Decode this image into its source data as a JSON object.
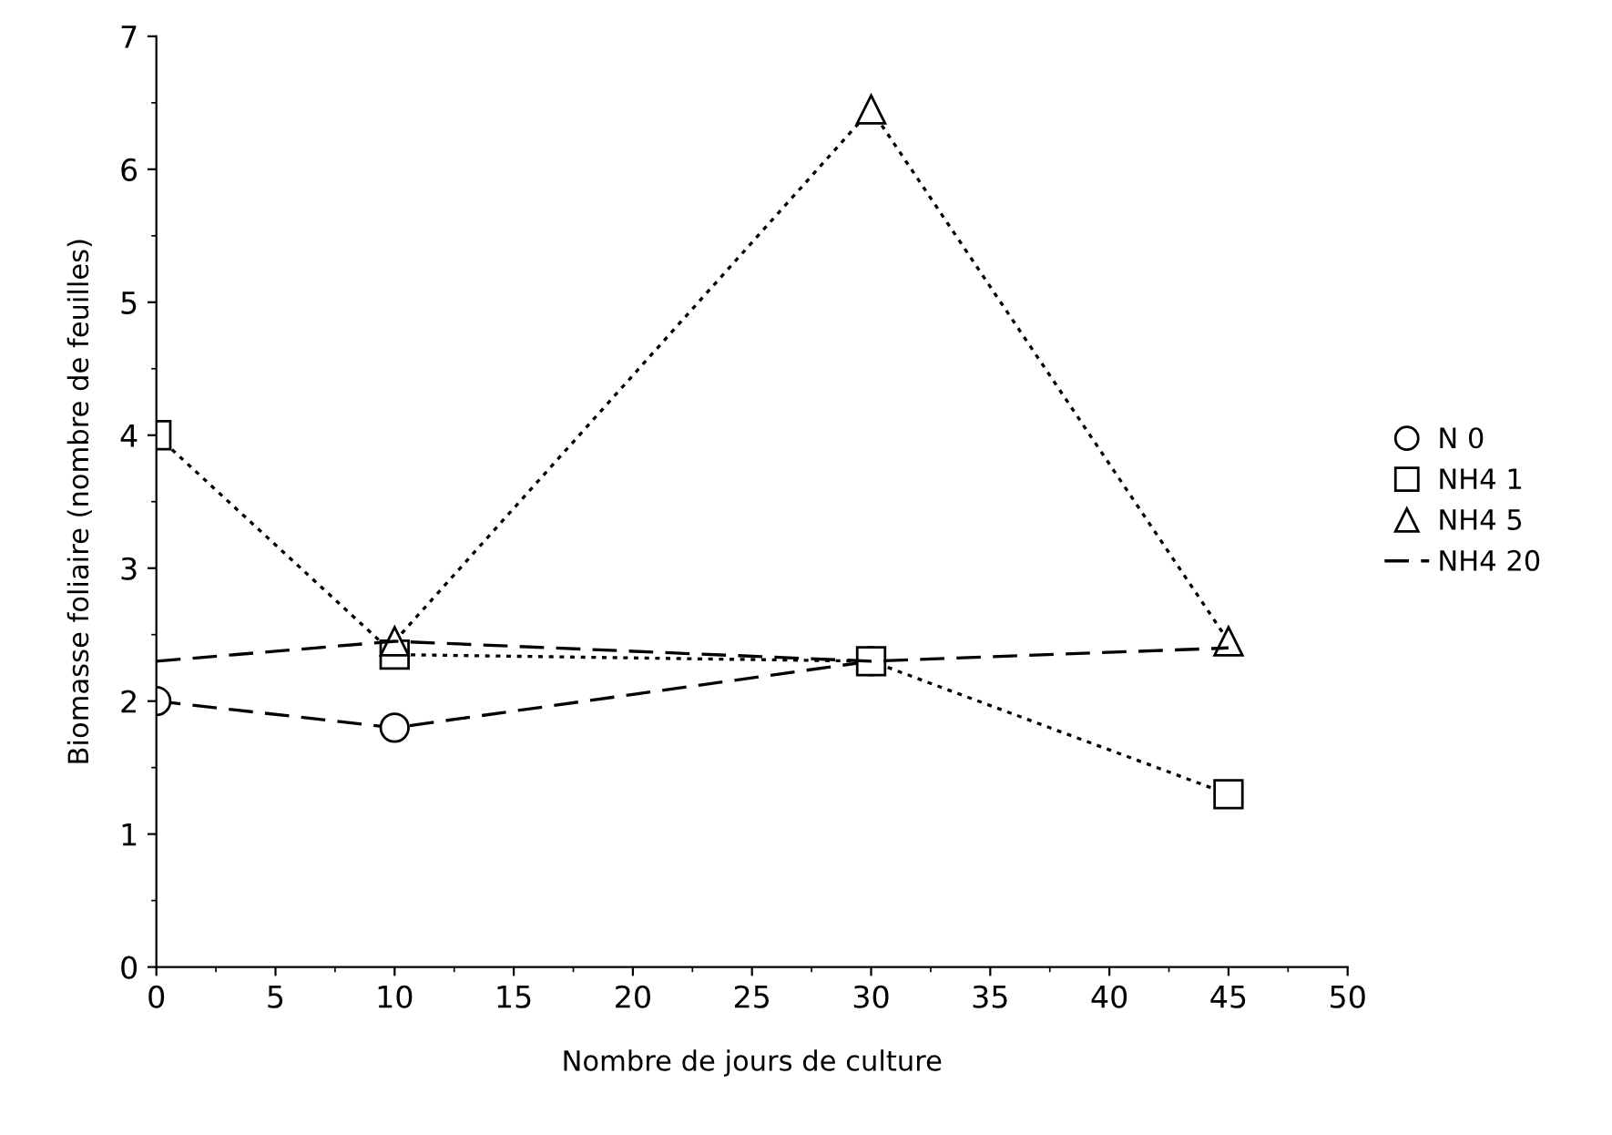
{
  "chart_data": {
    "type": "line",
    "xlabel": "Nombre de jours de culture",
    "ylabel": "Biomasse foliaire (nombre de feuilles)",
    "x": [
      0,
      10,
      30,
      45
    ],
    "series": [
      {
        "name": "N 0",
        "color": "#000000",
        "marker": "circle",
        "line_style": "dashed",
        "values": [
          2.0,
          1.8,
          2.3,
          null
        ]
      },
      {
        "name": "NH4 1",
        "color": "#000000",
        "marker": "square",
        "line_style": "dotted",
        "values": [
          4.0,
          2.35,
          2.3,
          1.3
        ]
      },
      {
        "name": "NH4 5",
        "color": "#000000",
        "marker": "triangle",
        "line_style": "dotted",
        "values": [
          null,
          2.45,
          6.45,
          2.45
        ]
      },
      {
        "name": "NH4 20",
        "color": "#000000",
        "marker": "none",
        "line_style": "dashed",
        "values": [
          2.3,
          2.45,
          2.3,
          2.4
        ]
      }
    ],
    "xlim": [
      0,
      50
    ],
    "xticks": [
      0,
      5,
      10,
      15,
      20,
      25,
      30,
      35,
      40,
      45,
      50
    ],
    "ylim": [
      0,
      7
    ],
    "yticks": [
      0,
      1,
      2,
      3,
      4,
      5,
      6,
      7
    ],
    "grid": false,
    "legend": "right"
  }
}
